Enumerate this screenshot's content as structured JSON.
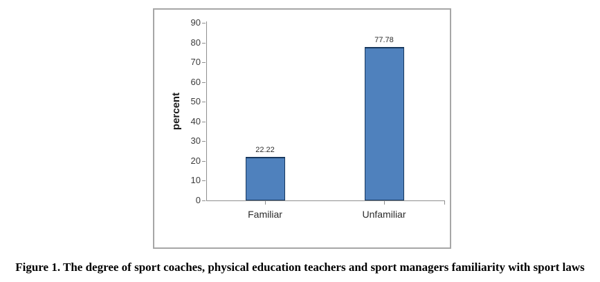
{
  "figure": {
    "caption": "Figure 1. The degree of sport coaches, physical education teachers and sport managers familiarity with sport laws"
  },
  "chart_data": {
    "type": "bar",
    "title": "",
    "categories": [
      "Familiar",
      "Unfamiliar"
    ],
    "values": [
      22.22,
      77.78
    ],
    "value_labels": [
      "22.22",
      "77.78"
    ],
    "xlabel": "",
    "ylabel": "percent",
    "ylim": [
      0,
      90
    ],
    "y_tick_interval": 10,
    "y_ticks_top_to_bottom": [
      "90",
      "80",
      "70",
      "60",
      "50",
      "40",
      "30",
      "20",
      "10",
      "0"
    ],
    "grid": false,
    "legend_position": "none",
    "colors": {
      "bar_fill": "#4F81BD",
      "bar_border": "#17375D",
      "axis": "#8E8E8E",
      "frame_border": "#A6A6A6"
    }
  }
}
